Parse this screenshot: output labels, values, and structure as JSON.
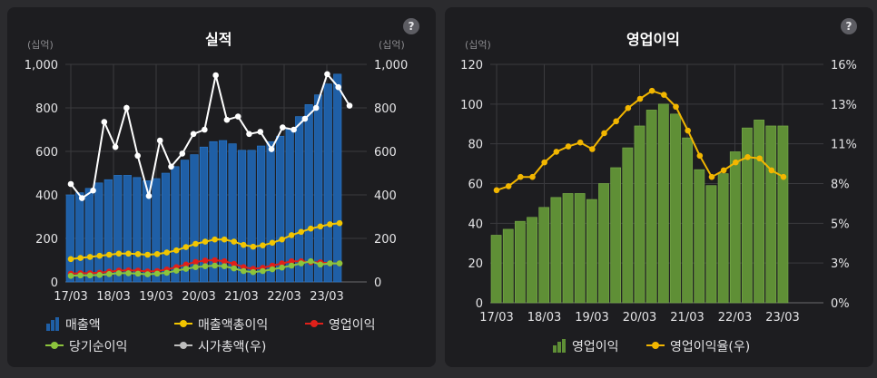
{
  "chart_data": [
    {
      "type": "bar",
      "title": "실적",
      "left_unit": "(십억)",
      "right_unit": "(십억)",
      "ylim": [
        0,
        1000
      ],
      "y_ticks": [
        "0",
        "200",
        "400",
        "600",
        "800",
        "1,000"
      ],
      "y2lim": [
        0,
        1000
      ],
      "y2_ticks": [
        "0",
        "200",
        "400",
        "600",
        "800",
        "1,000"
      ],
      "x_ticks": [
        "17/03",
        "18/03",
        "19/03",
        "20/03",
        "21/03",
        "22/03",
        "23/03"
      ],
      "legend_position": "bottom",
      "colors": {
        "bar": "#1f5fa6",
        "gross": "#f2c500",
        "op": "#e0201a",
        "net": "#8cc43c",
        "mcap": "#ffffff"
      },
      "series": [
        {
          "name": "매출액",
          "values": [
            400,
            410,
            430,
            455,
            470,
            490,
            490,
            480,
            465,
            475,
            500,
            530,
            560,
            585,
            620,
            645,
            650,
            635,
            605,
            605,
            625,
            645,
            670,
            705,
            760,
            815,
            860,
            910,
            955
          ]
        },
        {
          "name": "매출액총이익",
          "values": [
            105,
            110,
            115,
            120,
            125,
            130,
            130,
            128,
            125,
            128,
            135,
            145,
            160,
            175,
            185,
            195,
            195,
            185,
            170,
            162,
            168,
            180,
            195,
            215,
            230,
            245,
            255,
            265,
            270
          ]
        },
        {
          "name": "영업이익",
          "values": [
            38,
            40,
            40,
            42,
            47,
            52,
            53,
            52,
            48,
            50,
            57,
            68,
            80,
            92,
            98,
            100,
            95,
            83,
            68,
            60,
            65,
            75,
            85,
            95,
            95,
            90,
            90,
            85,
            85
          ]
        },
        {
          "name": "당기순이익",
          "values": [
            28,
            30,
            30,
            32,
            36,
            40,
            40,
            38,
            35,
            38,
            42,
            52,
            60,
            68,
            72,
            75,
            72,
            62,
            50,
            45,
            50,
            58,
            66,
            75,
            85,
            95,
            80,
            85,
            85
          ]
        },
        {
          "name": "시가총액(우)",
          "values": [
            450,
            385,
            420,
            735,
            620,
            800,
            580,
            395,
            650,
            530,
            590,
            680,
            700,
            950,
            745,
            760,
            680,
            690,
            610,
            710,
            700,
            750,
            800,
            955,
            895,
            810
          ]
        }
      ]
    },
    {
      "type": "bar",
      "title": "영업이익",
      "left_unit": "(십억)",
      "ylim": [
        0,
        120
      ],
      "y_ticks": [
        "0",
        "20",
        "40",
        "60",
        "80",
        "100",
        "120"
      ],
      "y2_ticks": [
        "0%",
        "3%",
        "5%",
        "8%",
        "11%",
        "13%",
        "16%"
      ],
      "x_ticks": [
        "17/03",
        "18/03",
        "19/03",
        "20/03",
        "21/03",
        "22/03",
        "23/03"
      ],
      "legend_position": "bottom",
      "colors": {
        "bar": "#5f8f36",
        "rate": "#f2b600"
      },
      "series": [
        {
          "name": "영업이익",
          "values": [
            34,
            37,
            41,
            43,
            48,
            53,
            55,
            55,
            52,
            60,
            68,
            78,
            89,
            97,
            100,
            95,
            83,
            67,
            59,
            65,
            76,
            88,
            92,
            89,
            89
          ]
        },
        {
          "name": "영업이익율(우)",
          "values": [
            8.5,
            8.8,
            9.5,
            9.5,
            10.6,
            11.4,
            11.8,
            12.1,
            11.6,
            12.8,
            13.7,
            14.7,
            15.4,
            16.0,
            15.7,
            14.8,
            13.0,
            11.1,
            9.5,
            10.0,
            10.6,
            11.0,
            10.9,
            10.0,
            9.5
          ]
        }
      ]
    }
  ]
}
